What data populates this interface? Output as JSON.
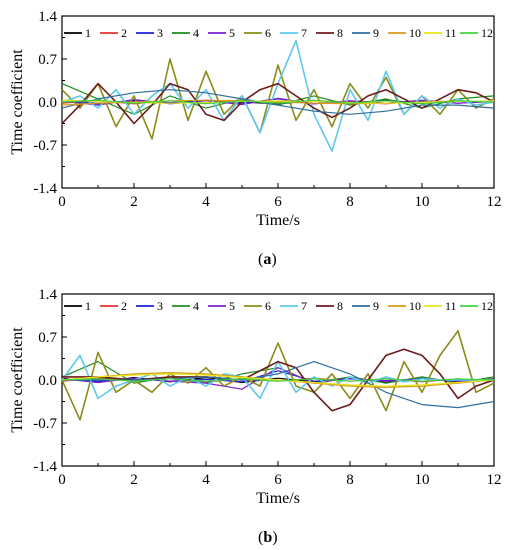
{
  "figure": {
    "panels": [
      {
        "id": "a",
        "label_prefix": "(",
        "label_letter": "a",
        "label_suffix": ")",
        "xlabel": "Time/s",
        "ylabel": "Time coefficient",
        "xticks": [
          "0",
          "2",
          "4",
          "6",
          "8",
          "10",
          "12"
        ],
        "yticks": [
          "1.4",
          "0.7",
          "0.0",
          "-0.7",
          "-1.4"
        ],
        "legend": [
          "1",
          "2",
          "3",
          "4",
          "5",
          "6",
          "7",
          "8",
          "9",
          "10",
          "11",
          "12"
        ]
      },
      {
        "id": "b",
        "label_prefix": "(",
        "label_letter": "b",
        "label_suffix": ")",
        "xlabel": "Time/s",
        "ylabel": "Time coefficient",
        "xticks": [
          "0",
          "2",
          "4",
          "6",
          "8",
          "10",
          "12"
        ],
        "yticks": [
          "1.4",
          "0.7",
          "0.0",
          "-0.7",
          "-1.4"
        ],
        "legend": [
          "1",
          "2",
          "3",
          "4",
          "5",
          "6",
          "7",
          "8",
          "9",
          "10",
          "11",
          "12"
        ]
      }
    ]
  },
  "chart_data": [
    {
      "type": "line",
      "title": "",
      "xlabel": "Time/s",
      "ylabel": "Time coefficient",
      "xlim": [
        0,
        12
      ],
      "ylim": [
        -1.4,
        1.4
      ],
      "grid": false,
      "legend_position": "top",
      "series": [
        {
          "name": "1",
          "color": "#000000",
          "x": [
            0,
            1,
            2,
            3,
            4,
            5,
            6,
            7,
            8,
            9,
            10,
            11,
            12
          ],
          "y": [
            0.02,
            -0.03,
            0.03,
            -0.02,
            0.03,
            0.0,
            -0.03,
            0.02,
            -0.02,
            0.03,
            -0.02,
            0.02,
            0.0
          ]
        },
        {
          "name": "2",
          "color": "#e8322f",
          "x": [
            0,
            1,
            2,
            3,
            4,
            5,
            6,
            7,
            8,
            9,
            10,
            11,
            12
          ],
          "y": [
            -0.02,
            0.02,
            -0.03,
            0.02,
            -0.02,
            0.03,
            -0.02,
            0.02,
            0.0,
            -0.03,
            0.02,
            -0.02,
            0.02
          ]
        },
        {
          "name": "3",
          "color": "#1f1fd6",
          "x": [
            0,
            1,
            2,
            3,
            4,
            5,
            6,
            7,
            8,
            9,
            10,
            11,
            12
          ],
          "y": [
            0.01,
            -0.02,
            0.02,
            -0.01,
            0.02,
            -0.02,
            0.05,
            -0.03,
            0.02,
            -0.02,
            0.01,
            -0.02,
            0.01
          ]
        },
        {
          "name": "4",
          "color": "#1f8c1f",
          "x": [
            0,
            1,
            2,
            3,
            4,
            5,
            6,
            7,
            8,
            9,
            10,
            11,
            12
          ],
          "y": [
            0.3,
            0.05,
            -0.2,
            0.1,
            -0.1,
            0.05,
            -0.05,
            0.1,
            -0.05,
            0.05,
            -0.1,
            0.05,
            0.1
          ]
        },
        {
          "name": "5",
          "color": "#7b1fd6",
          "x": [
            0,
            1,
            2,
            3,
            4,
            5,
            6,
            7,
            8,
            9,
            10,
            11,
            12
          ],
          "y": [
            0.02,
            -0.05,
            0.04,
            -0.03,
            0.02,
            -0.04,
            0.06,
            -0.03,
            0.02,
            -0.02,
            0.03,
            -0.02,
            0.01
          ]
        },
        {
          "name": "6",
          "color": "#8b8b1a",
          "x": [
            0,
            0.5,
            1,
            1.5,
            2,
            2.5,
            3,
            3.5,
            4,
            4.5,
            5,
            5.5,
            6,
            6.5,
            7,
            7.5,
            8,
            8.5,
            9,
            9.5,
            10,
            10.5,
            11,
            11.5,
            12
          ],
          "y": [
            0.2,
            -0.1,
            0.3,
            -0.4,
            0.1,
            -0.6,
            0.7,
            -0.3,
            0.5,
            -0.2,
            0.1,
            -0.5,
            0.6,
            -0.3,
            0.2,
            -0.4,
            0.3,
            -0.1,
            0.4,
            -0.2,
            0.1,
            -0.2,
            0.2,
            -0.1,
            0.05
          ]
        },
        {
          "name": "7",
          "color": "#5fc8f0",
          "x": [
            0,
            0.5,
            1,
            1.5,
            2,
            2.5,
            3,
            3.5,
            4,
            4.5,
            5,
            5.5,
            6,
            6.5,
            7,
            7.5,
            8,
            8.5,
            9,
            9.5,
            10,
            10.5,
            11,
            11.5,
            12
          ],
          "y": [
            0.0,
            0.1,
            -0.1,
            0.2,
            -0.2,
            0.1,
            0.3,
            -0.1,
            0.2,
            -0.3,
            0.1,
            -0.5,
            0.3,
            1.0,
            -0.2,
            -0.8,
            0.2,
            -0.3,
            0.5,
            -0.2,
            0.1,
            -0.1,
            0.05,
            -0.05,
            0.0
          ]
        },
        {
          "name": "8",
          "color": "#6b1a1a",
          "x": [
            0,
            0.5,
            1,
            1.5,
            2,
            2.5,
            3,
            3.5,
            4,
            4.5,
            5,
            5.5,
            6,
            6.5,
            7,
            7.5,
            8,
            8.5,
            9,
            9.5,
            10,
            10.5,
            11,
            11.5,
            12
          ],
          "y": [
            -0.35,
            -0.05,
            0.3,
            0.0,
            -0.35,
            -0.05,
            0.3,
            0.2,
            -0.2,
            -0.3,
            0.0,
            0.2,
            0.3,
            0.1,
            -0.1,
            -0.25,
            -0.1,
            0.1,
            0.2,
            0.05,
            -0.1,
            0.05,
            0.2,
            0.15,
            0.0
          ]
        },
        {
          "name": "9",
          "color": "#2f6f9f",
          "x": [
            0,
            1,
            2,
            3,
            4,
            5,
            6,
            7,
            8,
            9,
            10,
            11,
            12
          ],
          "y": [
            -0.1,
            0.05,
            0.15,
            0.2,
            0.15,
            0.05,
            -0.05,
            -0.15,
            -0.2,
            -0.15,
            -0.05,
            -0.05,
            -0.1
          ]
        },
        {
          "name": "10",
          "color": "#d99a1a",
          "x": [
            0,
            1,
            2,
            3,
            4,
            5,
            6,
            7,
            8,
            9,
            10,
            11,
            12
          ],
          "y": [
            -0.05,
            -0.02,
            0.0,
            0.02,
            0.03,
            0.02,
            0.0,
            -0.02,
            -0.03,
            -0.02,
            0.0,
            0.02,
            0.0
          ]
        },
        {
          "name": "11",
          "color": "#e6e61a",
          "x": [
            0,
            1,
            2,
            3,
            4,
            5,
            6,
            7,
            8,
            9,
            10,
            11,
            12
          ],
          "y": [
            0.03,
            0.01,
            -0.01,
            -0.02,
            -0.01,
            0.01,
            0.02,
            0.01,
            -0.01,
            -0.02,
            -0.01,
            0.01,
            0.02
          ]
        },
        {
          "name": "12",
          "color": "#3fd63f",
          "x": [
            0,
            1,
            2,
            3,
            4,
            5,
            6,
            7,
            8,
            9,
            10,
            11,
            12
          ],
          "y": [
            0.0,
            0.03,
            -0.02,
            0.02,
            -0.03,
            0.02,
            -0.02,
            0.03,
            -0.02,
            0.02,
            -0.03,
            0.02,
            0.0
          ]
        }
      ]
    },
    {
      "type": "line",
      "title": "",
      "xlabel": "Time/s",
      "ylabel": "Time coefficient",
      "xlim": [
        0,
        12
      ],
      "ylim": [
        -1.4,
        1.4
      ],
      "grid": false,
      "legend_position": "top",
      "series": [
        {
          "name": "1",
          "color": "#000000",
          "x": [
            0,
            1,
            2,
            3,
            4,
            5,
            6,
            7,
            8,
            9,
            10,
            11,
            12
          ],
          "y": [
            0.03,
            -0.04,
            0.04,
            -0.03,
            0.04,
            -0.04,
            0.03,
            -0.03,
            0.04,
            -0.04,
            0.03,
            -0.03,
            0.02
          ]
        },
        {
          "name": "2",
          "color": "#e8322f",
          "x": [
            0,
            1,
            2,
            3,
            4,
            5,
            6,
            7,
            8,
            9,
            10,
            11,
            12
          ],
          "y": [
            -0.02,
            0.03,
            -0.02,
            0.02,
            -0.03,
            0.02,
            -0.02,
            0.03,
            -0.02,
            0.02,
            -0.03,
            0.02,
            -0.02
          ]
        },
        {
          "name": "3",
          "color": "#1f1fd6",
          "x": [
            0,
            1,
            2,
            3,
            4,
            5,
            6,
            7,
            8,
            9,
            10,
            11,
            12
          ],
          "y": [
            0.01,
            -0.02,
            0.02,
            -0.02,
            0.01,
            -0.03,
            0.15,
            -0.02,
            0.02,
            -0.01,
            0.02,
            -0.02,
            0.01
          ]
        },
        {
          "name": "4",
          "color": "#1f8c1f",
          "x": [
            0,
            1,
            2,
            3,
            4,
            5,
            6,
            7,
            8,
            9,
            10,
            11,
            12
          ],
          "y": [
            0.05,
            0.3,
            -0.05,
            0.05,
            -0.05,
            0.1,
            0.2,
            -0.05,
            0.05,
            -0.05,
            0.05,
            -0.05,
            0.05
          ]
        },
        {
          "name": "5",
          "color": "#7b1fd6",
          "x": [
            0,
            1,
            2,
            3,
            4,
            5,
            6,
            7,
            8,
            9,
            10,
            11,
            12
          ],
          "y": [
            0.02,
            -0.04,
            0.03,
            -0.02,
            -0.05,
            -0.15,
            0.2,
            -0.05,
            0.03,
            -0.02,
            0.02,
            -0.02,
            0.01
          ]
        },
        {
          "name": "6",
          "color": "#8b8b1a",
          "x": [
            0,
            0.5,
            1,
            1.5,
            2,
            2.5,
            3,
            3.5,
            4,
            4.5,
            5,
            5.5,
            6,
            6.5,
            7,
            7.5,
            8,
            8.5,
            9,
            9.5,
            10,
            10.5,
            11,
            11.5,
            12
          ],
          "y": [
            0.0,
            -0.65,
            0.45,
            -0.2,
            0.0,
            -0.2,
            0.1,
            -0.05,
            0.2,
            -0.1,
            0.05,
            -0.1,
            0.6,
            -0.1,
            -0.2,
            0.1,
            -0.3,
            0.1,
            -0.5,
            0.3,
            -0.2,
            0.4,
            0.8,
            -0.2,
            -0.05
          ]
        },
        {
          "name": "7",
          "color": "#5fc8f0",
          "x": [
            0,
            0.5,
            1,
            1.5,
            2,
            2.5,
            3,
            3.5,
            4,
            4.5,
            5,
            5.5,
            6,
            6.5,
            7,
            7.5,
            8,
            8.5,
            9,
            9.5,
            10,
            10.5,
            11,
            11.5,
            12
          ],
          "y": [
            0.0,
            0.4,
            -0.3,
            -0.1,
            0.0,
            0.1,
            -0.1,
            0.05,
            -0.1,
            0.1,
            0.05,
            -0.3,
            0.3,
            -0.2,
            0.05,
            -0.1,
            0.05,
            -0.05,
            0.05,
            -0.03,
            0.02,
            0.0,
            0.0,
            0.0,
            0.0
          ]
        },
        {
          "name": "8",
          "color": "#6b1a1a",
          "x": [
            0,
            1,
            2,
            3,
            4,
            5,
            6,
            6.5,
            7,
            7.5,
            8,
            8.5,
            9,
            9.5,
            10,
            10.5,
            11,
            11.5,
            12
          ],
          "y": [
            0.05,
            0.05,
            0.0,
            0.05,
            0.05,
            0.0,
            0.3,
            0.2,
            -0.2,
            -0.5,
            -0.4,
            0.0,
            0.4,
            0.5,
            0.4,
            0.1,
            -0.3,
            -0.1,
            0.0
          ]
        },
        {
          "name": "9",
          "color": "#2f6f9f",
          "x": [
            0,
            1,
            2,
            3,
            4,
            5,
            6,
            7,
            8,
            9,
            10,
            11,
            12
          ],
          "y": [
            0.0,
            0.0,
            0.0,
            0.02,
            0.05,
            0.0,
            0.1,
            0.3,
            0.1,
            -0.2,
            -0.4,
            -0.45,
            -0.35
          ]
        },
        {
          "name": "10",
          "color": "#d99a1a",
          "x": [
            0,
            1,
            2,
            3,
            4,
            5,
            6,
            7,
            8,
            9,
            10,
            11,
            12
          ],
          "y": [
            0.0,
            0.05,
            0.1,
            0.12,
            0.1,
            0.05,
            0.0,
            -0.05,
            -0.1,
            -0.12,
            -0.1,
            -0.05,
            0.0
          ]
        },
        {
          "name": "11",
          "color": "#e6e61a",
          "x": [
            0,
            1,
            2,
            3,
            4,
            5,
            6,
            7,
            8,
            9,
            10,
            11,
            12
          ],
          "y": [
            0.0,
            0.05,
            0.08,
            0.1,
            0.08,
            0.04,
            0.0,
            -0.04,
            -0.08,
            -0.1,
            -0.08,
            -0.04,
            0.0
          ]
        },
        {
          "name": "12",
          "color": "#3fd63f",
          "x": [
            0,
            1,
            2,
            3,
            4,
            5,
            6,
            7,
            8,
            9,
            10,
            11,
            12
          ],
          "y": [
            0.0,
            0.02,
            -0.02,
            0.02,
            -0.02,
            0.02,
            -0.02,
            0.02,
            -0.02,
            0.02,
            -0.02,
            0.02,
            0.0
          ]
        }
      ]
    }
  ]
}
